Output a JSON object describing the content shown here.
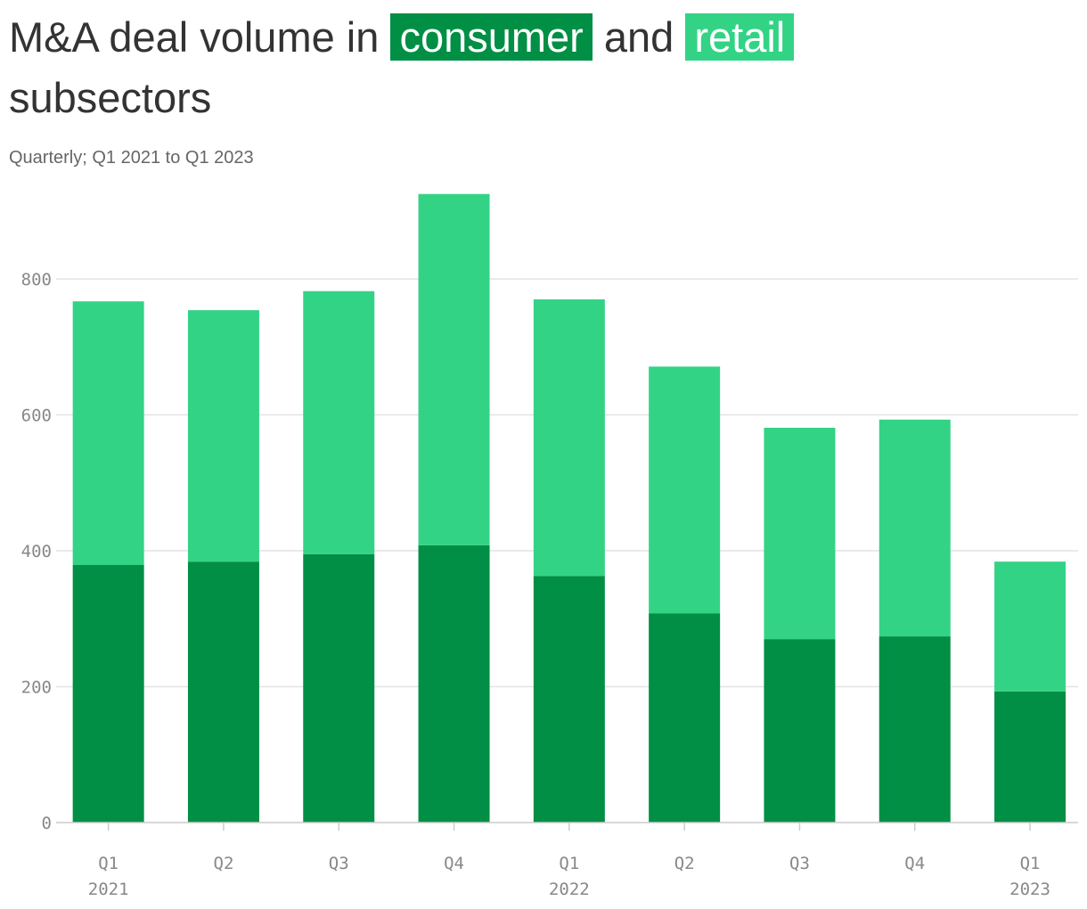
{
  "title": {
    "prefix": "M&A deal volume in",
    "series1": "consumer",
    "middle": "and",
    "series2": "retail",
    "suffix": "subsectors"
  },
  "subtitle": "Quarterly; Q1 2021 to Q1 2023",
  "colors": {
    "consumer": "#008f44",
    "retail": "#33d386"
  },
  "chart_data": {
    "type": "bar",
    "stacked": true,
    "categories": [
      {
        "quarter": "Q1",
        "year": "2021"
      },
      {
        "quarter": "Q2",
        "year": ""
      },
      {
        "quarter": "Q3",
        "year": ""
      },
      {
        "quarter": "Q4",
        "year": ""
      },
      {
        "quarter": "Q1",
        "year": "2022"
      },
      {
        "quarter": "Q2",
        "year": ""
      },
      {
        "quarter": "Q3",
        "year": ""
      },
      {
        "quarter": "Q4",
        "year": ""
      },
      {
        "quarter": "Q1",
        "year": "2023"
      }
    ],
    "series": [
      {
        "name": "consumer",
        "values": [
          379,
          384,
          395,
          408,
          363,
          308,
          270,
          274,
          193
        ]
      },
      {
        "name": "retail",
        "values": [
          388,
          370,
          387,
          517,
          407,
          363,
          311,
          319,
          191
        ]
      }
    ],
    "ylim": [
      0,
      925
    ],
    "yticks": [
      0,
      200,
      400,
      600,
      800
    ],
    "grid": true,
    "legend": "in title"
  }
}
